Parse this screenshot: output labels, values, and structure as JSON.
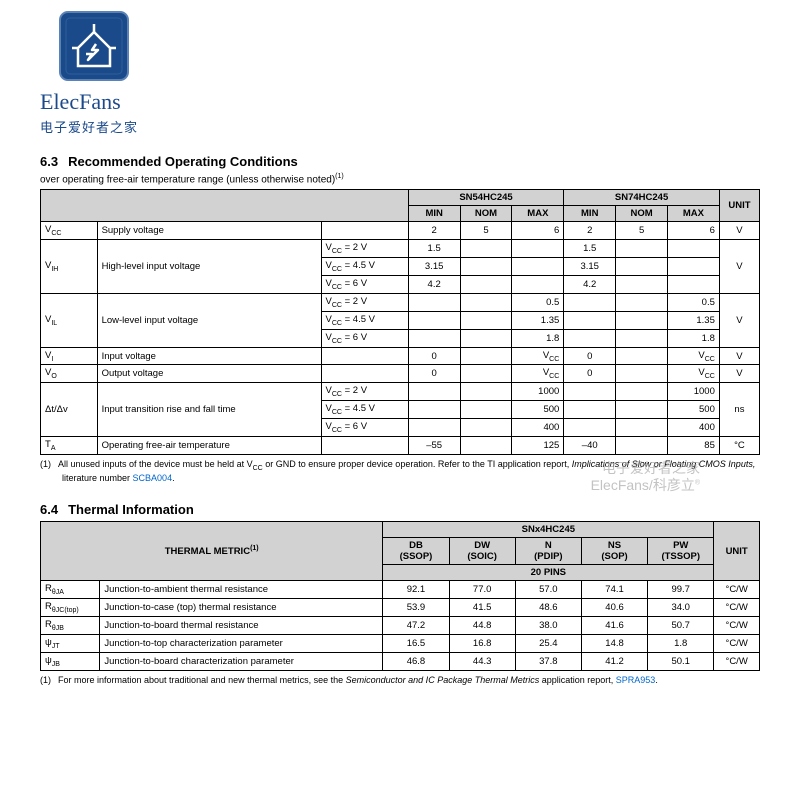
{
  "logo": {
    "brand_name": "ElecFans",
    "brand_sub": "电子爱好者之家",
    "icon_bg": "#1b4a8a",
    "icon_border": "#2a5a9a"
  },
  "watermark": {
    "line1": "电子爱好者之家",
    "line2": "ElecFans/科彦立",
    "reg": "®"
  },
  "section63": {
    "num": "6.3",
    "title": "Recommended Operating Conditions",
    "sub": "over operating free-air temperature range (unless otherwise noted)",
    "sup": "(1)",
    "part_a": "SN54HC245",
    "part_b": "SN74HC245",
    "col_min": "MIN",
    "col_nom": "NOM",
    "col_max": "MAX",
    "col_unit": "UNIT",
    "rows": [
      {
        "sym": "V",
        "sub": "CC",
        "desc": "Supply voltage",
        "cond": "",
        "a": [
          "2",
          "5",
          "6"
        ],
        "b": [
          "2",
          "5",
          "6"
        ],
        "unit": "V",
        "unit_rowspan": 1
      },
      {
        "sym": "V",
        "sub": "IH",
        "desc": "High-level input voltage",
        "cond": "V_CC = 2 V",
        "a": [
          "1.5",
          "",
          ""
        ],
        "b": [
          "1.5",
          "",
          ""
        ],
        "unit": "V",
        "unit_rowspan": 3,
        "merge": 3
      },
      {
        "cond": "V_CC = 4.5 V",
        "a": [
          "3.15",
          "",
          ""
        ],
        "b": [
          "3.15",
          "",
          ""
        ]
      },
      {
        "cond": "V_CC = 6 V",
        "a": [
          "4.2",
          "",
          ""
        ],
        "b": [
          "4.2",
          "",
          ""
        ]
      },
      {
        "sym": "V",
        "sub": "IL",
        "desc": "Low-level input voltage",
        "cond": "V_CC = 2 V",
        "a": [
          "",
          "",
          "0.5"
        ],
        "b": [
          "",
          "",
          "0.5"
        ],
        "unit": "V",
        "unit_rowspan": 3,
        "merge": 3
      },
      {
        "cond": "V_CC = 4.5 V",
        "a": [
          "",
          "",
          "1.35"
        ],
        "b": [
          "",
          "",
          "1.35"
        ]
      },
      {
        "cond": "V_CC = 6 V",
        "a": [
          "",
          "",
          "1.8"
        ],
        "b": [
          "",
          "",
          "1.8"
        ]
      },
      {
        "sym": "V",
        "sub": "I",
        "desc": "Input voltage",
        "cond": "",
        "a": [
          "0",
          "",
          "V_CC"
        ],
        "b": [
          "0",
          "",
          "V_CC"
        ],
        "unit": "V",
        "unit_rowspan": 1
      },
      {
        "sym": "V",
        "sub": "O",
        "desc": "Output voltage",
        "cond": "",
        "a": [
          "0",
          "",
          "V_CC"
        ],
        "b": [
          "0",
          "",
          "V_CC"
        ],
        "unit": "V",
        "unit_rowspan": 1
      },
      {
        "sym": "Δt/Δv",
        "sub": "",
        "desc": "Input transition rise and fall time",
        "cond": "V_CC = 2 V",
        "a": [
          "",
          "",
          "1000"
        ],
        "b": [
          "",
          "",
          "1000"
        ],
        "unit": "ns",
        "unit_rowspan": 3,
        "merge": 3
      },
      {
        "cond": "V_CC = 4.5 V",
        "a": [
          "",
          "",
          "500"
        ],
        "b": [
          "",
          "",
          "500"
        ]
      },
      {
        "cond": "V_CC = 6 V",
        "a": [
          "",
          "",
          "400"
        ],
        "b": [
          "",
          "",
          "400"
        ]
      },
      {
        "sym": "T",
        "sub": "A",
        "desc": "Operating free-air temperature",
        "cond": "",
        "a": [
          "–55",
          "",
          "125"
        ],
        "b": [
          "–40",
          "",
          "85"
        ],
        "unit": "°C",
        "unit_rowspan": 1
      }
    ],
    "footnote_num": "(1)",
    "footnote_text_a": "All unused inputs of the device must be held at V",
    "footnote_text_b": " or GND to ensure proper device operation. Refer to the TI application report, ",
    "footnote_italic": "Implications of Slow or Floating CMOS Inputs,",
    "footnote_text_c": " literature number ",
    "footnote_link": "SCBA004",
    "footnote_text_d": "."
  },
  "section64": {
    "num": "6.4",
    "title": "Thermal Information",
    "metric_header": "THERMAL METRIC",
    "metric_sup": "(1)",
    "product": "SNx4HC245",
    "pins": "20 PINS",
    "col_unit": "UNIT",
    "packages": [
      {
        "code": "DB",
        "name": "(SSOP)"
      },
      {
        "code": "DW",
        "name": "(SOIC)"
      },
      {
        "code": "N",
        "name": "(PDIP)"
      },
      {
        "code": "NS",
        "name": "(SOP)"
      },
      {
        "code": "PW",
        "name": "(TSSOP)"
      }
    ],
    "rows": [
      {
        "sym": "R",
        "sub": "θJA",
        "desc": "Junction-to-ambient thermal resistance",
        "v": [
          "92.1",
          "77.0",
          "57.0",
          "74.1",
          "99.7"
        ],
        "unit": "°C/W"
      },
      {
        "sym": "R",
        "sub": "θJC(top)",
        "desc": "Junction-to-case (top) thermal resistance",
        "v": [
          "53.9",
          "41.5",
          "48.6",
          "40.6",
          "34.0"
        ],
        "unit": "°C/W"
      },
      {
        "sym": "R",
        "sub": "θJB",
        "desc": "Junction-to-board thermal resistance",
        "v": [
          "47.2",
          "44.8",
          "38.0",
          "41.6",
          "50.7"
        ],
        "unit": "°C/W"
      },
      {
        "sym": "ψ",
        "sub": "JT",
        "desc": "Junction-to-top characterization parameter",
        "v": [
          "16.5",
          "16.8",
          "25.4",
          "14.8",
          "1.8"
        ],
        "unit": "°C/W"
      },
      {
        "sym": "ψ",
        "sub": "JB",
        "desc": "Junction-to-board characterization parameter",
        "v": [
          "46.8",
          "44.3",
          "37.8",
          "41.2",
          "50.1"
        ],
        "unit": "°C/W"
      }
    ],
    "footnote_num": "(1)",
    "footnote_text_a": "For more information about traditional and new thermal metrics, see the ",
    "footnote_italic": "Semiconductor and IC Package Thermal Metrics",
    "footnote_text_b": " application report, ",
    "footnote_link": "SPRA953",
    "footnote_text_c": "."
  }
}
